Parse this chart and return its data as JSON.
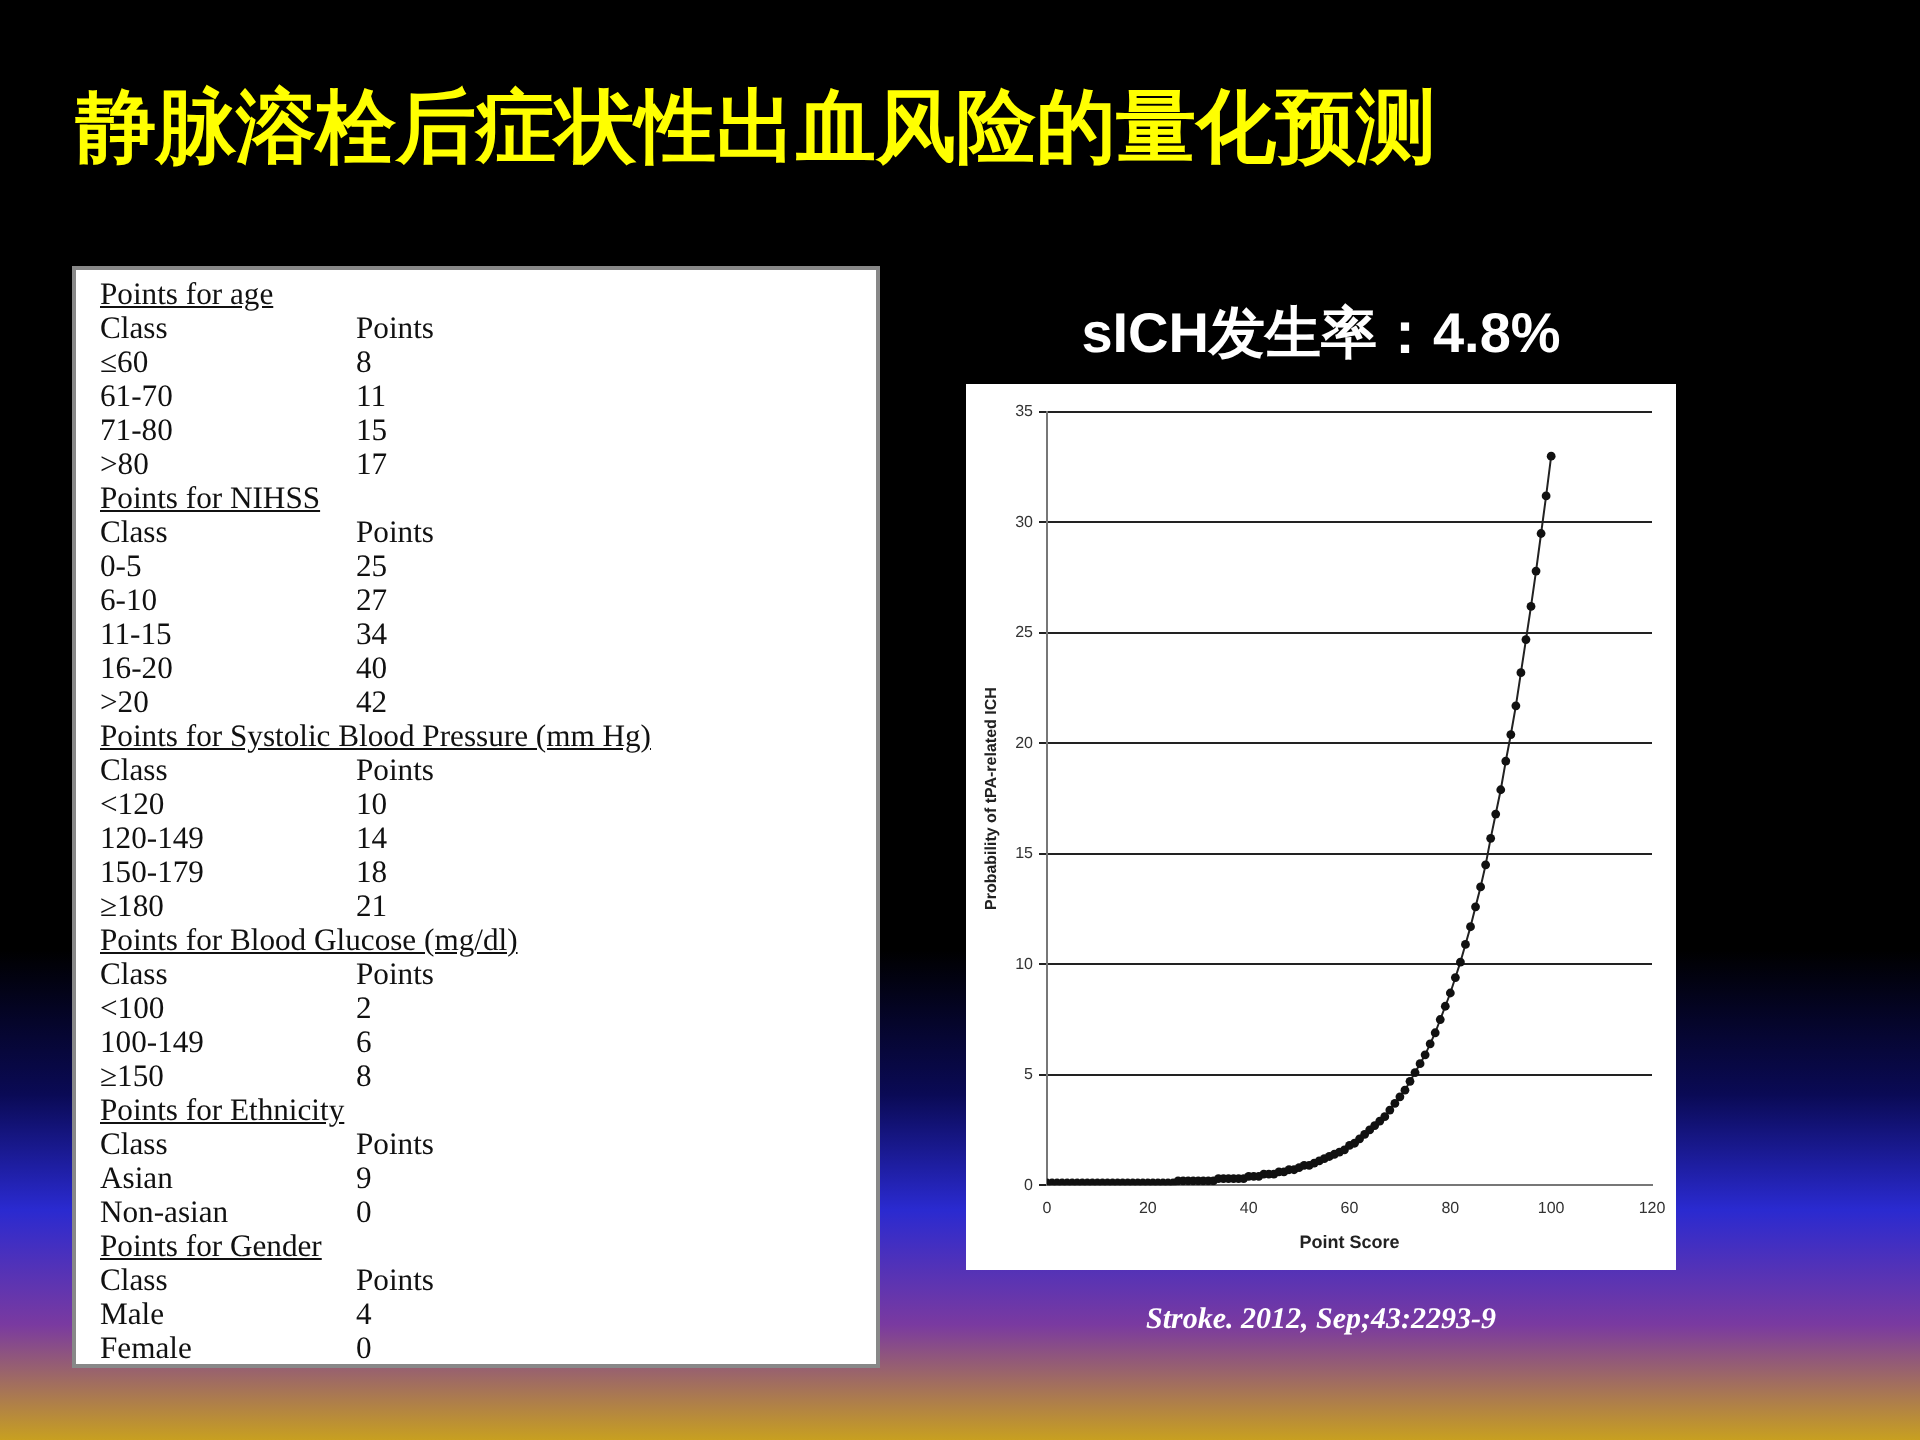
{
  "chart_data": [
    {
      "type": "other",
      "title": "静脉溶栓后症状性出血风险的量化预测",
      "annotations": [
        "Points for age",
        "Class\tPoints",
        "≤60\t8",
        "61-70\t11",
        "71-80\t15",
        ">80\t17",
        "Points for NIHSS",
        "Class\tPoints",
        "0-5\t25",
        "6-10\t27",
        "11-15\t34",
        "16-20\t40",
        ">20\t42",
        "Points for Systolic Blood Pressure (mm Hg)",
        "Class\tPoints",
        "<120\t10",
        "120-149\t14",
        "150-179\t18",
        "≥180\t21",
        "Points for Blood Glucose (mg/dl)",
        "Class\tPoints",
        "<100\t2",
        "100-149\t6",
        "≥150\t8",
        "Points for Ethnicity",
        "Class\tPoints",
        "Asian\t9",
        "Non-asian\t0",
        "Points for Gender",
        "Class\tPoints",
        "Male\t4",
        "Female\t0"
      ]
    },
    {
      "type": "line",
      "title": "sICH发生率：4.8%",
      "xlabel": "Point Score",
      "ylabel": "Probability of tPA-related ICH",
      "x": [
        0,
        1,
        2,
        3,
        4,
        5,
        6,
        7,
        8,
        9,
        10,
        11,
        12,
        13,
        14,
        15,
        16,
        17,
        18,
        19,
        20,
        21,
        22,
        23,
        24,
        25,
        26,
        27,
        28,
        29,
        30,
        31,
        32,
        33,
        34,
        35,
        36,
        37,
        38,
        39,
        40,
        41,
        42,
        43,
        44,
        45,
        46,
        47,
        48,
        49,
        50,
        51,
        52,
        53,
        54,
        55,
        56,
        57,
        58,
        59,
        60,
        61,
        62,
        63,
        64,
        65,
        66,
        67,
        68,
        69,
        70,
        71,
        72,
        73,
        74,
        75,
        76,
        77,
        78,
        79,
        80,
        81,
        82,
        83,
        84,
        85,
        86,
        87,
        88,
        89,
        90,
        91,
        92,
        93,
        94,
        95,
        96,
        97,
        98,
        99,
        100
      ],
      "series": [
        {
          "color": "#222222",
          "values": [
            0.1,
            0.1,
            0.1,
            0.1,
            0.1,
            0.1,
            0.1,
            0.1,
            0.1,
            0.1,
            0.1,
            0.1,
            0.1,
            0.1,
            0.1,
            0.1,
            0.1,
            0.1,
            0.1,
            0.1,
            0.1,
            0.1,
            0.1,
            0.1,
            0.1,
            0.1,
            0.2,
            0.2,
            0.2,
            0.2,
            0.2,
            0.2,
            0.2,
            0.2,
            0.3,
            0.3,
            0.3,
            0.3,
            0.3,
            0.3,
            0.4,
            0.4,
            0.4,
            0.5,
            0.5,
            0.5,
            0.6,
            0.6,
            0.7,
            0.7,
            0.8,
            0.9,
            0.9,
            1.0,
            1.1,
            1.2,
            1.3,
            1.4,
            1.5,
            1.6,
            1.8,
            1.9,
            2.1,
            2.3,
            2.5,
            2.7,
            2.9,
            3.1,
            3.4,
            3.7,
            4.0,
            4.3,
            4.7,
            5.1,
            5.5,
            5.9,
            6.4,
            6.9,
            7.5,
            8.1,
            8.7,
            9.4,
            10.1,
            10.9,
            11.7,
            12.6,
            13.5,
            14.5,
            15.7,
            16.8,
            17.9,
            19.2,
            20.4,
            21.7,
            23.2,
            24.7,
            26.2,
            27.8,
            29.5,
            31.2,
            33.0
          ]
        }
      ],
      "xlim": [
        0,
        120
      ],
      "xticks": [
        0,
        20,
        40,
        60,
        80,
        100,
        120
      ],
      "ylim": [
        0,
        35
      ],
      "yticks": [
        0,
        5,
        10,
        15,
        20,
        25,
        30,
        35
      ],
      "grid": "y",
      "marker": "circle",
      "legend": false,
      "annotations": [
        "Stroke. 2012, Sep;43:2293-9"
      ]
    }
  ]
}
